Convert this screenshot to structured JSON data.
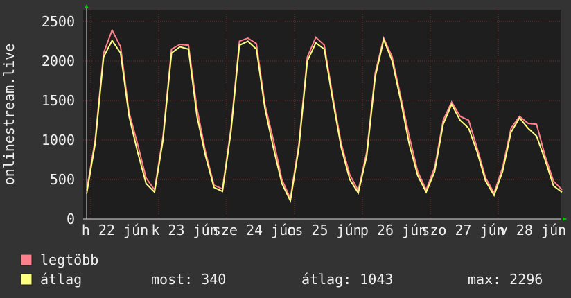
{
  "chart_data": {
    "type": "line",
    "y_axis_label": "onlinestream.live",
    "x_labels": [
      "h 22 jún",
      "k 23 jún",
      "sze 24 jún",
      "cs 25 jún",
      "p 26 jún",
      "szo 27 jún",
      "v 28 jún"
    ],
    "series": [
      {
        "name": "legtöbb",
        "color": "#ff7f8a",
        "values": [
          360,
          1000,
          2100,
          2390,
          2180,
          1350,
          950,
          520,
          370,
          1050,
          2150,
          2210,
          2200,
          1400,
          850,
          430,
          380,
          1150,
          2250,
          2290,
          2220,
          1450,
          1000,
          500,
          260,
          950,
          2050,
          2300,
          2200,
          1550,
          950,
          560,
          360,
          850,
          1850,
          2290,
          2050,
          1550,
          1050,
          600,
          370,
          650,
          1250,
          1480,
          1300,
          1250,
          900,
          520,
          330,
          650,
          1150,
          1300,
          1210,
          1200,
          800,
          480,
          370
        ]
      },
      {
        "name": "átlag",
        "color": "#ffff80",
        "values": [
          320,
          950,
          2050,
          2260,
          2100,
          1300,
          850,
          450,
          340,
          1000,
          2100,
          2180,
          2150,
          1300,
          800,
          400,
          350,
          1100,
          2200,
          2250,
          2150,
          1400,
          900,
          450,
          230,
          900,
          2000,
          2230,
          2150,
          1500,
          900,
          500,
          330,
          800,
          1800,
          2270,
          2000,
          1500,
          950,
          550,
          340,
          600,
          1200,
          1450,
          1250,
          1150,
          850,
          480,
          300,
          600,
          1100,
          1280,
          1150,
          1050,
          750,
          420,
          340
        ]
      }
    ],
    "stats": [
      {
        "label": "most:",
        "value": 340
      },
      {
        "label": "átlag:",
        "value": 1043
      },
      {
        "label": "max:",
        "value": 2296
      }
    ],
    "ylim": [
      0,
      2500
    ],
    "yticks": [
      0,
      500,
      1000,
      1500,
      2000,
      2500
    ],
    "grid": true
  }
}
